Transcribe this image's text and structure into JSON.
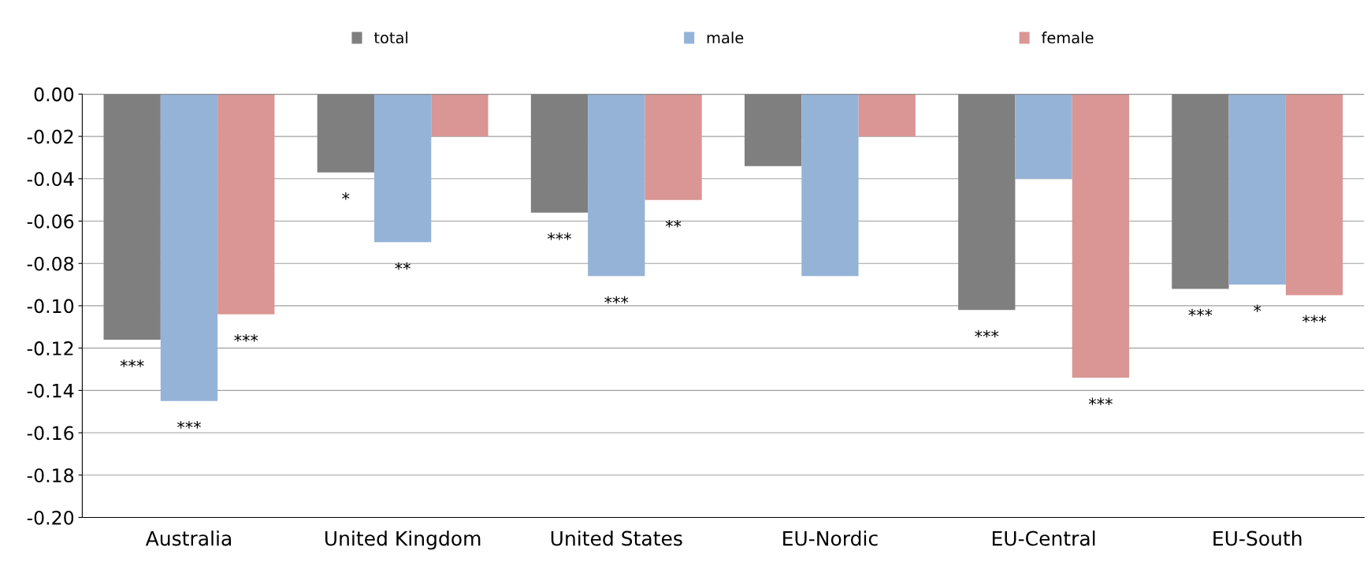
{
  "chart_data": {
    "type": "bar",
    "categories": [
      "Australia",
      "United Kingdom",
      "United States",
      "EU-Nordic",
      "EU-Central",
      "EU-South"
    ],
    "series": [
      {
        "name": "total",
        "color": "#7f7f7f",
        "values": [
          -0.116,
          -0.037,
          -0.056,
          -0.034,
          -0.102,
          -0.092
        ],
        "value_labels": [
          "***",
          "*",
          "***",
          null,
          "***",
          "***"
        ]
      },
      {
        "name": "male",
        "color": "#95b3d7",
        "values": [
          -0.145,
          -0.07,
          -0.086,
          -0.086,
          -0.04,
          -0.09
        ],
        "value_labels": [
          "***",
          "**",
          "***",
          null,
          null,
          "*"
        ]
      },
      {
        "name": "female",
        "color": "#d99694",
        "values": [
          -0.104,
          -0.02,
          -0.05,
          -0.02,
          -0.134,
          -0.095
        ],
        "value_labels": [
          "***",
          null,
          "**",
          null,
          "***",
          "***"
        ]
      }
    ],
    "ylim": [
      -0.2,
      0
    ],
    "yticks": [
      {
        "value": 0,
        "label": "0.00"
      },
      {
        "value": -0.02,
        "label": "-0.02"
      },
      {
        "value": -0.04,
        "label": "-0.04"
      },
      {
        "value": -0.06,
        "label": "-0.06"
      },
      {
        "value": -0.08,
        "label": "-0.08"
      },
      {
        "value": -0.1,
        "label": "-0.10"
      },
      {
        "value": -0.12,
        "label": "-0.12"
      },
      {
        "value": -0.14,
        "label": "-0.14"
      },
      {
        "value": -0.16,
        "label": "-0.16"
      },
      {
        "value": -0.18,
        "label": "-0.18"
      },
      {
        "value": -0.2,
        "label": "-0.20"
      }
    ],
    "grid": "y",
    "legend": "top"
  }
}
